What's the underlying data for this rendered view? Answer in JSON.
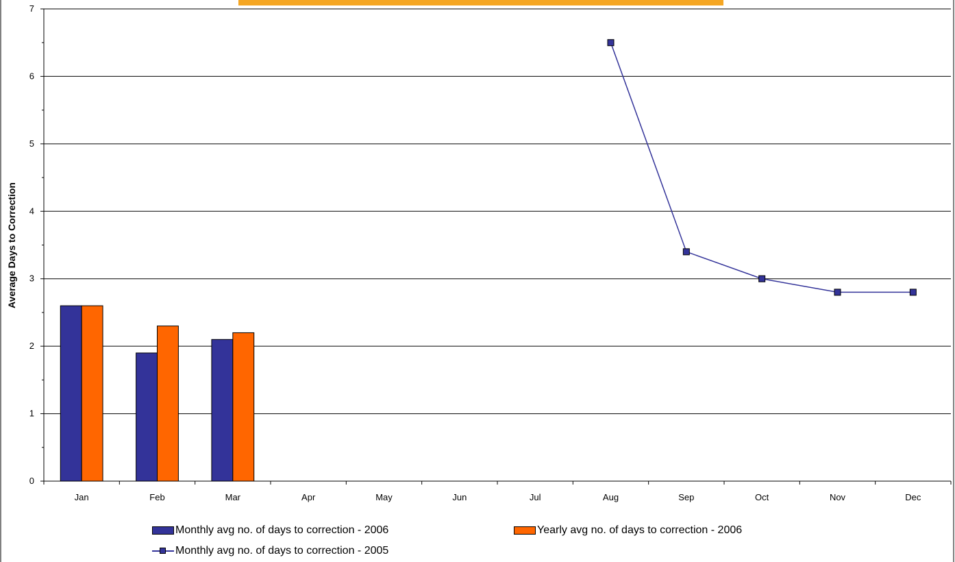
{
  "chart_data": {
    "type": "bar",
    "title": "",
    "xlabel": "",
    "ylabel": "Average Days to Correction",
    "ylim": [
      0,
      7
    ],
    "yticks": [
      "0",
      "1",
      "2",
      "3",
      "4",
      "5",
      "6",
      "7"
    ],
    "grid": true,
    "legend_position": "bottom",
    "categories": [
      "Jan",
      "Feb",
      "Mar",
      "Apr",
      "May",
      "Jun",
      "Jul",
      "Aug",
      "Sep",
      "Oct",
      "Nov",
      "Dec"
    ],
    "series": [
      {
        "name": "Monthly avg no. of days to correction - 2006",
        "kind": "bar",
        "color": "#333399",
        "values": [
          2.6,
          1.9,
          2.1,
          null,
          null,
          null,
          null,
          null,
          null,
          null,
          null,
          null
        ]
      },
      {
        "name": "Yearly avg no. of days to correction - 2006",
        "kind": "bar",
        "color": "#FF6600",
        "values": [
          2.6,
          2.3,
          2.2,
          null,
          null,
          null,
          null,
          null,
          null,
          null,
          null,
          null
        ]
      },
      {
        "name": "Monthly avg no. of days to correction - 2005",
        "kind": "line",
        "color": "#333399",
        "values": [
          null,
          null,
          null,
          null,
          null,
          null,
          null,
          6.5,
          3.4,
          3.0,
          2.8,
          2.8
        ]
      }
    ]
  },
  "header_banner_color": "#F5A623",
  "legend": {
    "item1": "Monthly avg no. of days to correction - 2006",
    "item2": "Yearly avg no. of days to correction - 2006",
    "item3": "Monthly avg no. of days to correction - 2005"
  }
}
